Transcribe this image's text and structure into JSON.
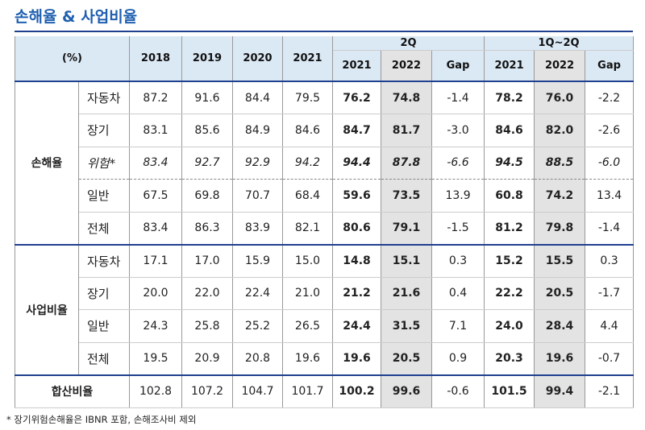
{
  "title": "손해율 & 사업비율",
  "table": {
    "unit": "(%)",
    "years": [
      "2018",
      "2019",
      "2020",
      "2021"
    ],
    "periods": [
      {
        "label": "2Q",
        "columns": [
          "2021",
          "2022",
          "Gap"
        ]
      },
      {
        "label": "1Q~2Q",
        "columns": [
          "2021",
          "2022",
          "Gap"
        ]
      }
    ],
    "groups": [
      {
        "label": "손해율",
        "rows": [
          {
            "label": "자동차",
            "values": [
              "87.2",
              "91.6",
              "84.4",
              "79.5",
              "76.2",
              "74.8",
              "-1.4",
              "78.2",
              "76.0",
              "-2.2"
            ]
          },
          {
            "label": "장기",
            "values": [
              "83.1",
              "85.6",
              "84.9",
              "84.6",
              "84.7",
              "81.7",
              "-3.0",
              "84.6",
              "82.0",
              "-2.6"
            ]
          },
          {
            "label": "위험*",
            "values": [
              "83.4",
              "92.7",
              "92.9",
              "94.2",
              "94.4",
              "87.8",
              "-6.6",
              "94.5",
              "88.5",
              "-6.0"
            ]
          },
          {
            "label": "일반",
            "values": [
              "67.5",
              "69.8",
              "70.7",
              "68.4",
              "59.6",
              "73.5",
              "13.9",
              "60.8",
              "74.2",
              "13.4"
            ]
          },
          {
            "label": "전체",
            "values": [
              "83.4",
              "86.3",
              "83.9",
              "82.1",
              "80.6",
              "79.1",
              "-1.5",
              "81.2",
              "79.8",
              "-1.4"
            ]
          }
        ]
      },
      {
        "label": "사업비율",
        "rows": [
          {
            "label": "자동차",
            "values": [
              "17.1",
              "17.0",
              "15.9",
              "15.0",
              "14.8",
              "15.1",
              "0.3",
              "15.2",
              "15.5",
              "0.3"
            ]
          },
          {
            "label": "장기",
            "values": [
              "20.0",
              "22.0",
              "22.4",
              "21.0",
              "21.2",
              "21.6",
              "0.4",
              "22.2",
              "20.5",
              "-1.7"
            ]
          },
          {
            "label": "일반",
            "values": [
              "24.3",
              "25.8",
              "25.2",
              "26.5",
              "24.4",
              "31.5",
              "7.1",
              "24.0",
              "28.4",
              "4.4"
            ]
          },
          {
            "label": "전체",
            "values": [
              "19.5",
              "20.9",
              "20.8",
              "19.6",
              "19.6",
              "20.5",
              "0.9",
              "20.3",
              "19.6",
              "-0.7"
            ]
          }
        ]
      }
    ],
    "total": {
      "label": "합산비율",
      "values": [
        "102.8",
        "107.2",
        "104.7",
        "101.7",
        "100.2",
        "99.6",
        "-0.6",
        "101.5",
        "99.4",
        "-2.1"
      ]
    }
  },
  "footnote": "* 장기위험손해율은 IBNR 포함, 손해조사비 제외"
}
